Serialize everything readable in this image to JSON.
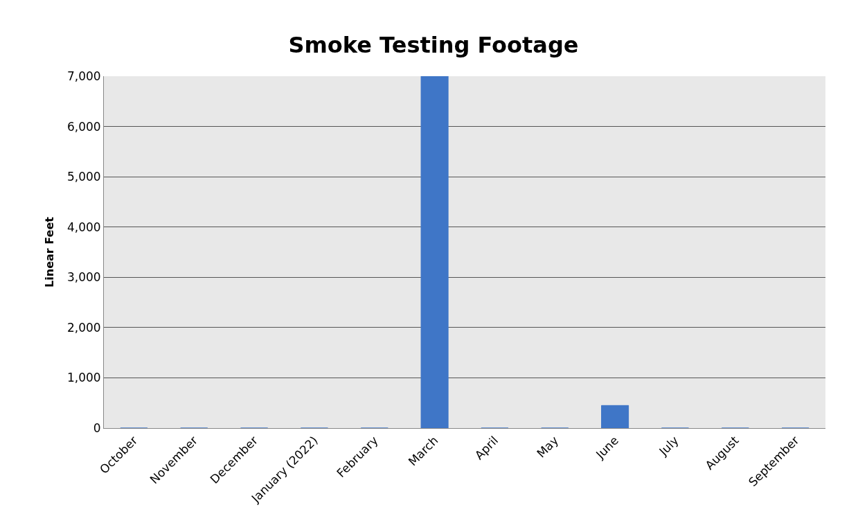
{
  "chart_data": {
    "type": "bar",
    "title": "Smoke Testing Footage",
    "ylabel": "Linear Feet",
    "categories": [
      "October",
      "November",
      "December",
      "January (2022)",
      "February",
      "March",
      "April",
      "May",
      "June",
      "July",
      "August",
      "September"
    ],
    "values": [
      0,
      0,
      0,
      0,
      0,
      7000,
      0,
      0,
      450,
      0,
      0,
      0
    ],
    "color": "#3f76c7",
    "ylim": [
      0,
      7000
    ],
    "yticks": [
      {
        "value": 0,
        "label": "0"
      },
      {
        "value": 1000,
        "label": "1,000"
      },
      {
        "value": 2000,
        "label": "2,000"
      },
      {
        "value": 3000,
        "label": "3,000"
      },
      {
        "value": 4000,
        "label": "4,000"
      },
      {
        "value": 5000,
        "label": "5,000"
      },
      {
        "value": 6000,
        "label": "6,000"
      },
      {
        "value": 7000,
        "label": "7,000"
      }
    ],
    "grid": "y"
  }
}
